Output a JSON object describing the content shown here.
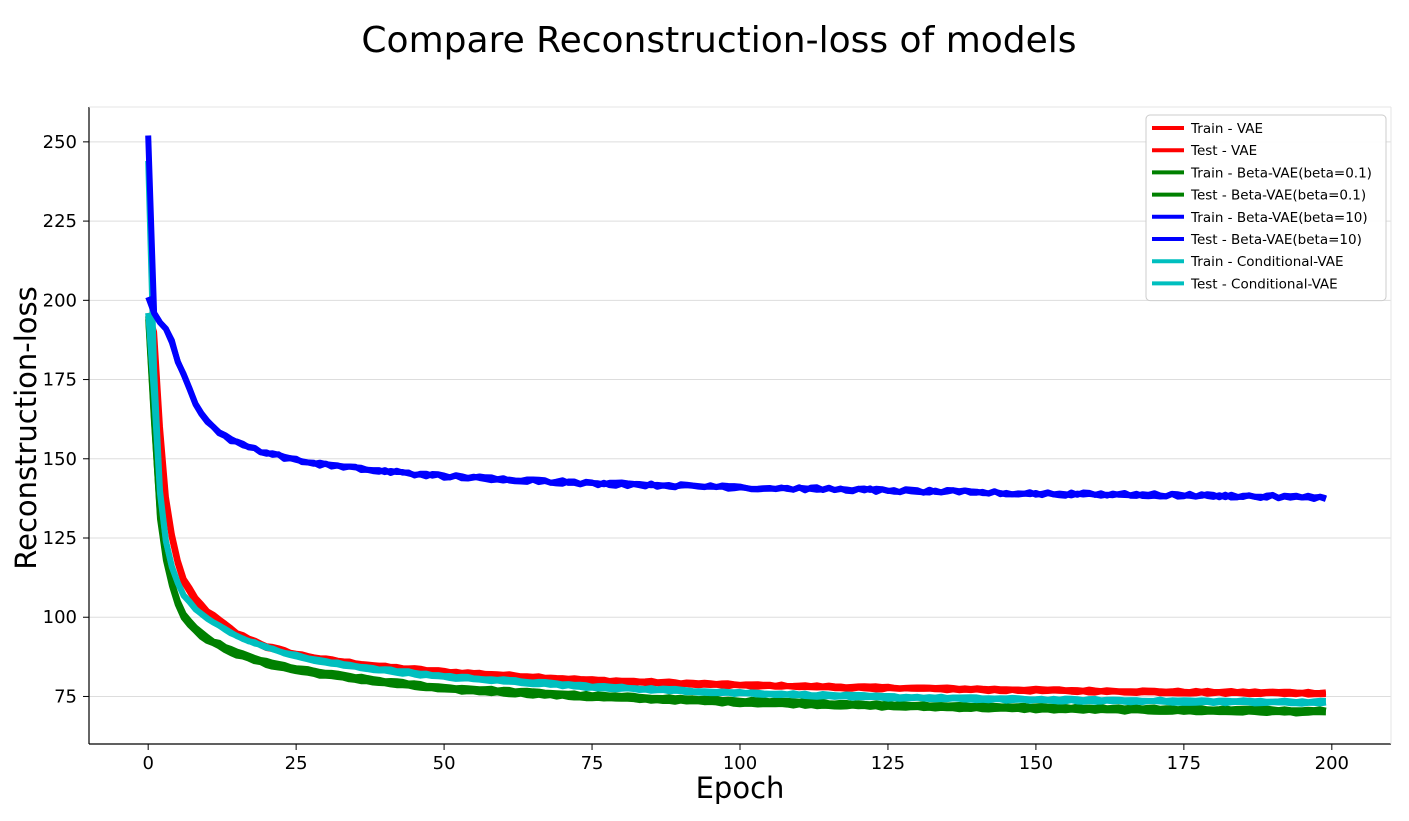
{
  "chart_data": {
    "type": "line",
    "title": "Compare Reconstruction-loss of models",
    "xlabel": "Epoch",
    "ylabel": "Reconstruction-loss",
    "xlim": [
      -10,
      210
    ],
    "ylim": [
      60,
      261
    ],
    "xticks": [
      0,
      25,
      50,
      75,
      100,
      125,
      150,
      175,
      200
    ],
    "yticks": [
      75,
      100,
      125,
      150,
      175,
      200,
      225,
      250
    ],
    "grid": "horizontal",
    "legend_position": "top-right",
    "x_range": [
      0,
      199
    ],
    "series": [
      {
        "name": "Train - VAE",
        "color": "#ff0000",
        "initial": 196,
        "k": [
          [
            0,
            196
          ],
          [
            1,
            190
          ],
          [
            2,
            160
          ],
          [
            3,
            138
          ],
          [
            4,
            126
          ],
          [
            5,
            118
          ],
          [
            6,
            112
          ],
          [
            8,
            106
          ],
          [
            10,
            102
          ],
          [
            15,
            95
          ],
          [
            20,
            91
          ],
          [
            25,
            88.5
          ],
          [
            30,
            86.8
          ],
          [
            40,
            84.5
          ],
          [
            50,
            83
          ],
          [
            75,
            80.3
          ],
          [
            100,
            78.8
          ],
          [
            125,
            77.9
          ],
          [
            150,
            77.2
          ],
          [
            175,
            76.6
          ],
          [
            199,
            76.3
          ]
        ]
      },
      {
        "name": "Test - VAE",
        "color": "#ff0000",
        "initial": 195,
        "k": [
          [
            0,
            195
          ],
          [
            1,
            188
          ],
          [
            2,
            158
          ],
          [
            3,
            137
          ],
          [
            4,
            125
          ],
          [
            5,
            117
          ],
          [
            6,
            111
          ],
          [
            8,
            105
          ],
          [
            10,
            101
          ],
          [
            15,
            94.5
          ],
          [
            20,
            90.5
          ],
          [
            25,
            88
          ],
          [
            30,
            86.3
          ],
          [
            40,
            84
          ],
          [
            50,
            82.5
          ],
          [
            75,
            79.8
          ],
          [
            100,
            78.3
          ],
          [
            125,
            77.4
          ],
          [
            150,
            76.7
          ],
          [
            175,
            76.1
          ],
          [
            199,
            75.8
          ]
        ]
      },
      {
        "name": "Train - Beta-VAE(beta=0.1)",
        "color": "#008000",
        "initial": 195,
        "k": [
          [
            0,
            195
          ],
          [
            1,
            162
          ],
          [
            2,
            131
          ],
          [
            3,
            118
          ],
          [
            4,
            110
          ],
          [
            5,
            104
          ],
          [
            6,
            100
          ],
          [
            8,
            95.5
          ],
          [
            10,
            92.5
          ],
          [
            15,
            88
          ],
          [
            20,
            85
          ],
          [
            25,
            83
          ],
          [
            30,
            81.5
          ],
          [
            40,
            79
          ],
          [
            50,
            77
          ],
          [
            75,
            74.5
          ],
          [
            100,
            72.8
          ],
          [
            125,
            71.6
          ],
          [
            150,
            70.8
          ],
          [
            175,
            70.2
          ],
          [
            199,
            69.8
          ]
        ]
      },
      {
        "name": "Test - Beta-VAE(beta=0.1)",
        "color": "#008000",
        "initial": 194,
        "k": [
          [
            0,
            194
          ],
          [
            1,
            161
          ],
          [
            2,
            132
          ],
          [
            3,
            119
          ],
          [
            4,
            111
          ],
          [
            5,
            105
          ],
          [
            6,
            101
          ],
          [
            8,
            96.5
          ],
          [
            10,
            93.5
          ],
          [
            15,
            89
          ],
          [
            20,
            86
          ],
          [
            25,
            84
          ],
          [
            30,
            82.5
          ],
          [
            40,
            80
          ],
          [
            50,
            78
          ],
          [
            75,
            75.5
          ],
          [
            100,
            73.8
          ],
          [
            125,
            72.6
          ],
          [
            150,
            71.8
          ],
          [
            175,
            71.2
          ],
          [
            199,
            70.8
          ]
        ]
      },
      {
        "name": "Train - Beta-VAE(beta=10)",
        "color": "#0000ff",
        "initial": 252,
        "k": [
          [
            0,
            252
          ],
          [
            1,
            196
          ],
          [
            2,
            193
          ],
          [
            3,
            191
          ],
          [
            4,
            187
          ],
          [
            5,
            181
          ],
          [
            7,
            172
          ],
          [
            8,
            167
          ],
          [
            10,
            162
          ],
          [
            12,
            158
          ],
          [
            15,
            155
          ],
          [
            20,
            152
          ],
          [
            25,
            149.5
          ],
          [
            30,
            148
          ],
          [
            40,
            146
          ],
          [
            50,
            144.5
          ],
          [
            75,
            142.2
          ],
          [
            100,
            141
          ],
          [
            125,
            140
          ],
          [
            150,
            139
          ],
          [
            175,
            138.5
          ],
          [
            199,
            137.8
          ]
        ]
      },
      {
        "name": "Test - Beta-VAE(beta=10)",
        "color": "#0000ff",
        "initial": 201,
        "k": [
          [
            0,
            201
          ],
          [
            1,
            196
          ],
          [
            2,
            193
          ],
          [
            3,
            191
          ],
          [
            4,
            187
          ],
          [
            5,
            181
          ],
          [
            7,
            172
          ],
          [
            8,
            167
          ],
          [
            10,
            162
          ],
          [
            12,
            158
          ],
          [
            15,
            155
          ],
          [
            20,
            152
          ],
          [
            25,
            149.5
          ],
          [
            30,
            148
          ],
          [
            40,
            146
          ],
          [
            50,
            144.5
          ],
          [
            75,
            142.2
          ],
          [
            100,
            141
          ],
          [
            125,
            140
          ],
          [
            150,
            139
          ],
          [
            175,
            138.5
          ],
          [
            199,
            137.8
          ]
        ]
      },
      {
        "name": "Train - Conditional-VAE",
        "color": "#00bfbf",
        "initial": 244,
        "k": [
          [
            0,
            244
          ],
          [
            1,
            178
          ],
          [
            2,
            140
          ],
          [
            3,
            124
          ],
          [
            4,
            116
          ],
          [
            5,
            111
          ],
          [
            6,
            107
          ],
          [
            8,
            102.5
          ],
          [
            10,
            99.5
          ],
          [
            15,
            94
          ],
          [
            20,
            90.5
          ],
          [
            25,
            88
          ],
          [
            30,
            86
          ],
          [
            40,
            83.5
          ],
          [
            50,
            81.5
          ],
          [
            75,
            78.3
          ],
          [
            100,
            76.3
          ],
          [
            125,
            75
          ],
          [
            150,
            74.2
          ],
          [
            175,
            73.7
          ],
          [
            199,
            73.4
          ]
        ]
      },
      {
        "name": "Test - Conditional-VAE",
        "color": "#00bfbf",
        "initial": 196,
        "k": [
          [
            0,
            196
          ],
          [
            1,
            170
          ],
          [
            2,
            139
          ],
          [
            3,
            124
          ],
          [
            4,
            116
          ],
          [
            5,
            111
          ],
          [
            6,
            107
          ],
          [
            8,
            102.5
          ],
          [
            10,
            99.5
          ],
          [
            15,
            94
          ],
          [
            20,
            90.5
          ],
          [
            25,
            87.5
          ],
          [
            30,
            85.5
          ],
          [
            40,
            83
          ],
          [
            50,
            81
          ],
          [
            75,
            77.8
          ],
          [
            100,
            75.8
          ],
          [
            125,
            74.5
          ],
          [
            150,
            73.7
          ],
          [
            175,
            73.2
          ],
          [
            199,
            72.9
          ]
        ]
      }
    ]
  }
}
